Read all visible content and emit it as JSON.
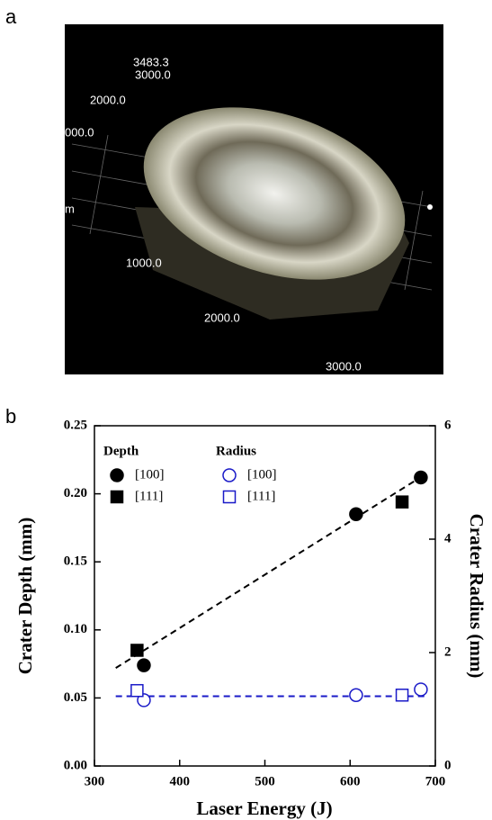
{
  "panel_labels": [
    "a",
    "b"
  ],
  "image_labels": [
    "3483.3",
    "3000.0",
    "2000.0",
    "000.0",
    "m",
    "1000.0",
    "2000.0",
    "3000.0"
  ],
  "chart_data": {
    "type": "scatter",
    "x_label": "Laser Energy (J)",
    "y_label": "Crater Depth (mm)",
    "y2_label": "Crater Radius (mm)",
    "xlim": [
      300,
      700
    ],
    "xticks": [
      300,
      400,
      500,
      600,
      700
    ],
    "ylim": [
      0,
      0.25
    ],
    "yticks": [
      {
        "value": 0,
        "label": "0.00"
      },
      {
        "value": 0.05,
        "label": "0.05"
      },
      {
        "value": 0.1,
        "label": "0.10"
      },
      {
        "value": 0.15,
        "label": "0.15"
      },
      {
        "value": 0.2,
        "label": "0.20"
      },
      {
        "value": 0.25,
        "label": "0.25"
      }
    ],
    "y2lim": [
      0,
      6
    ],
    "y2ticks": [
      0,
      2,
      4,
      6
    ],
    "series": [
      {
        "name": "[100]",
        "group": "Depth",
        "marker": "circle",
        "filled": true,
        "color": "#000000",
        "x": [
          358,
          607,
          683
        ],
        "values": [
          0.074,
          0.185,
          0.212
        ]
      },
      {
        "name": "[111]",
        "group": "Depth",
        "marker": "square",
        "filled": true,
        "color": "#000000",
        "x": [
          350,
          661
        ],
        "values": [
          0.085,
          0.194
        ]
      },
      {
        "name": "[100]",
        "group": "Radius",
        "marker": "circle",
        "filled": false,
        "color": "#1a1ac8",
        "axis": "y2",
        "x": [
          358,
          607,
          683
        ],
        "values": [
          1.16,
          1.25,
          1.35
        ]
      },
      {
        "name": "[111]",
        "group": "Radius",
        "marker": "square",
        "filled": false,
        "color": "#1a1ac8",
        "axis": "y2",
        "x": [
          350,
          661
        ],
        "values": [
          1.33,
          1.25
        ]
      }
    ],
    "fits": [
      {
        "color": "#000000",
        "x": [
          325,
          690
        ],
        "values": [
          0.072,
          0.215
        ]
      },
      {
        "color": "#1a1ac8",
        "axis": "y2",
        "x": [
          325,
          690
        ],
        "values": [
          1.23,
          1.23
        ]
      }
    ]
  }
}
